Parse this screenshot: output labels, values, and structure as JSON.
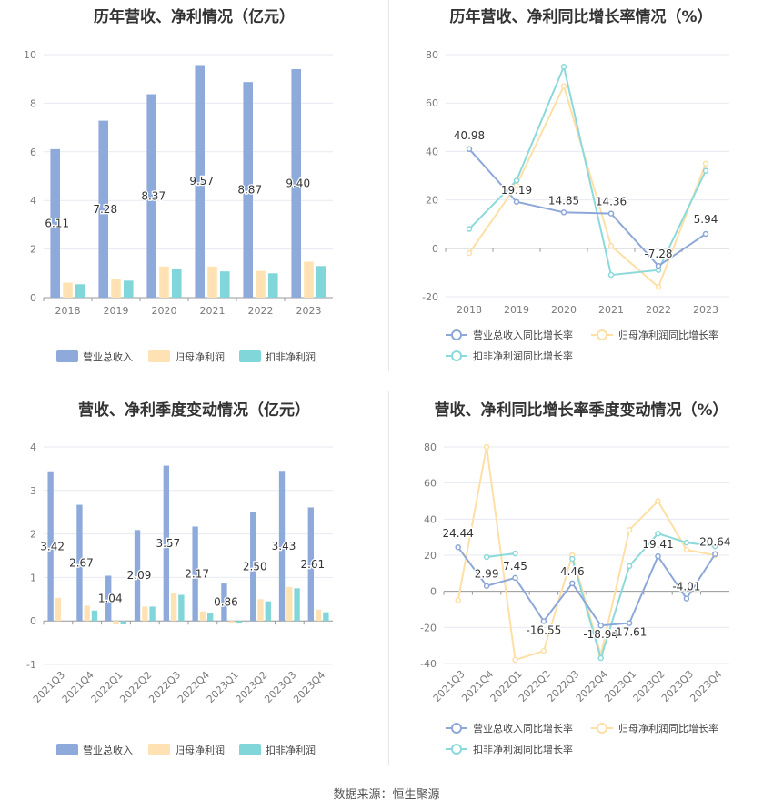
{
  "colors": {
    "revenue": "#8eaadb",
    "parent_profit": "#ffe2b3",
    "deducted_profit": "#80d6d8",
    "revenue_line": "#8da8d8",
    "parent_line": "#ffdfa6",
    "deducted_line": "#8bd9db",
    "grid": "#e6e9f0",
    "axis_text": "#7a7a7a"
  },
  "chart_data": [
    {
      "type": "bar",
      "title": "历年营收、净利情况（亿元）",
      "categories": [
        "2018",
        "2019",
        "2020",
        "2021",
        "2022",
        "2023"
      ],
      "ylim": [
        0,
        10
      ],
      "yticks": [
        "0",
        "2",
        "4",
        "6",
        "8",
        "10"
      ],
      "series": [
        {
          "name": "营业总收入",
          "values": [
            6.11,
            7.28,
            8.37,
            9.57,
            8.87,
            9.4
          ],
          "labels": [
            "6.11",
            "7.28",
            "8.37",
            "9.57",
            "8.87",
            "9.40"
          ]
        },
        {
          "name": "归母净利润",
          "values": [
            0.62,
            0.78,
            1.28,
            1.28,
            1.1,
            1.48
          ]
        },
        {
          "name": "扣非净利润",
          "values": [
            0.55,
            0.7,
            1.2,
            1.08,
            1.0,
            1.3
          ]
        }
      ],
      "legend": "bottom"
    },
    {
      "type": "line",
      "title": "历年营收、净利同比增长率情况（%）",
      "categories": [
        "2018",
        "2019",
        "2020",
        "2021",
        "2022",
        "2023"
      ],
      "ylim": [
        -20,
        80
      ],
      "yticks": [
        "-20",
        "0",
        "20",
        "40",
        "60",
        "80"
      ],
      "series": [
        {
          "name": "营业总收入同比增长率",
          "values": [
            40.98,
            19.19,
            14.85,
            14.36,
            -7.28,
            5.94
          ],
          "labels": [
            "40.98",
            "19.19",
            "14.85",
            "14.36",
            "-7.28",
            "5.94"
          ]
        },
        {
          "name": "归母净利润同比增长率",
          "values": [
            -2,
            26,
            67,
            1,
            -16,
            35
          ]
        },
        {
          "name": "扣非净利润同比增长率",
          "values": [
            8,
            28,
            75,
            -11,
            -9,
            32
          ]
        }
      ],
      "legend": "bottom"
    },
    {
      "type": "bar",
      "title": "营收、净利季度变动情况（亿元）",
      "categories": [
        "2021Q3",
        "2021Q4",
        "2022Q1",
        "2022Q2",
        "2022Q3",
        "2022Q4",
        "2023Q1",
        "2023Q2",
        "2023Q3",
        "2023Q4"
      ],
      "ylim": [
        -1,
        4
      ],
      "yticks": [
        "-1",
        "0",
        "1",
        "2",
        "3",
        "4"
      ],
      "series": [
        {
          "name": "营业总收入",
          "values": [
            3.42,
            2.67,
            1.04,
            2.09,
            3.57,
            2.17,
            0.86,
            2.5,
            3.43,
            2.61
          ],
          "labels": [
            "3.42",
            "2.67",
            "1.04",
            "2.09",
            "3.57",
            "2.17",
            "0.86",
            "2.50",
            "3.43",
            "2.61"
          ]
        },
        {
          "name": "归母净利润",
          "values": [
            0.53,
            0.35,
            -0.08,
            0.33,
            0.63,
            0.22,
            -0.05,
            0.5,
            0.78,
            0.26
          ]
        },
        {
          "name": "扣非净利润",
          "values": [
            null,
            0.24,
            -0.08,
            0.33,
            0.6,
            0.17,
            -0.06,
            0.45,
            0.75,
            0.2
          ]
        }
      ],
      "legend": "bottom"
    },
    {
      "type": "line",
      "title": "营收、净利同比增长率季度变动情况（%）",
      "categories": [
        "2021Q3",
        "2021Q4",
        "2022Q1",
        "2022Q2",
        "2022Q3",
        "2022Q4",
        "2023Q1",
        "2023Q2",
        "2023Q3",
        "2023Q4"
      ],
      "ylim": [
        -40,
        80
      ],
      "yticks": [
        "-40",
        "-20",
        "0",
        "20",
        "40",
        "60",
        "80"
      ],
      "series": [
        {
          "name": "营业总收入同比增长率",
          "values": [
            24.44,
            2.99,
            7.45,
            -16.55,
            4.46,
            -18.94,
            -17.61,
            19.41,
            -4.01,
            20.64
          ],
          "labels": [
            "24.44",
            "2.99",
            "7.45",
            "-16.55",
            "4.46",
            "-18.94",
            "-17.61",
            "19.41",
            "-4.01",
            "20.64"
          ]
        },
        {
          "name": "归母净利润同比增长率",
          "values": [
            -5,
            80,
            -38,
            -33,
            20,
            -35,
            34,
            50,
            23,
            20
          ]
        },
        {
          "name": "扣非净利润同比增长率",
          "values": [
            null,
            19,
            21,
            null,
            18,
            -37,
            14,
            32,
            27,
            25
          ]
        }
      ],
      "legend": "bottom"
    }
  ],
  "source": "数据来源：恒生聚源"
}
